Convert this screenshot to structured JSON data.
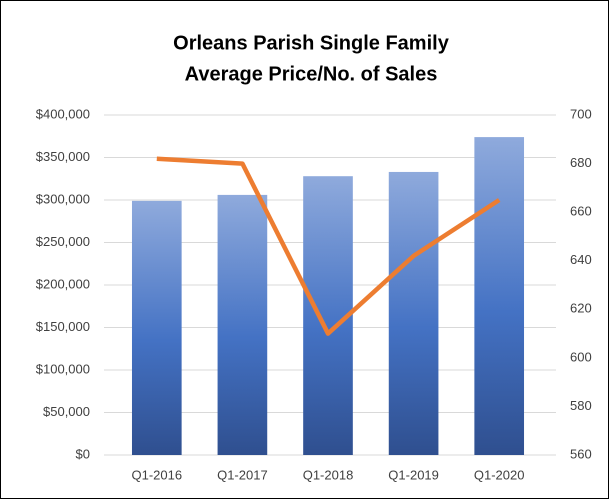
{
  "chart_data": {
    "type": "bar-line",
    "title": [
      "Orleans Parish Single Family",
      "Average Price/No. of Sales"
    ],
    "categories": [
      "Q1-2016",
      "Q1-2017",
      "Q1-2018",
      "Q1-2019",
      "Q1-2020"
    ],
    "series": [
      {
        "type": "bar",
        "color": "#4472c4",
        "values": [
          299000,
          306000,
          328000,
          333000,
          374000
        ]
      },
      {
        "type": "line",
        "color": "#ed7d31",
        "axis": "y2",
        "values": [
          682,
          680,
          610,
          642,
          665
        ]
      }
    ],
    "ylim": [
      0,
      400000
    ],
    "yticks": [
      {
        "value": 0,
        "label": "$0"
      },
      {
        "value": 50000,
        "label": "$50,000"
      },
      {
        "value": 100000,
        "label": "$100,000"
      },
      {
        "value": 150000,
        "label": "$150,000"
      },
      {
        "value": 200000,
        "label": "$200,000"
      },
      {
        "value": 250000,
        "label": "$250,000"
      },
      {
        "value": 300000,
        "label": "$300,000"
      },
      {
        "value": 350000,
        "label": "$350,000"
      },
      {
        "value": 400000,
        "label": "$400,000"
      }
    ],
    "y2lim": [
      560,
      700
    ],
    "y2ticks": [
      560,
      580,
      600,
      620,
      640,
      660,
      680,
      700
    ],
    "grid": true
  }
}
